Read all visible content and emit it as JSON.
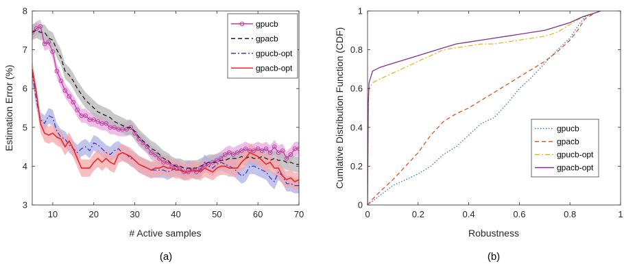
{
  "chart_data": [
    {
      "type": "line",
      "caption": "(a)",
      "xlabel": "# Active samples",
      "ylabel": "Estimation Error (%)",
      "xlim": [
        5,
        70
      ],
      "ylim": [
        3,
        8
      ],
      "xticks": [
        10,
        20,
        30,
        40,
        50,
        60,
        70
      ],
      "yticks": [
        3,
        4,
        5,
        6,
        7,
        8
      ],
      "grid": false,
      "legend_position": "top-right",
      "series": [
        {
          "name": "gpucb",
          "color": "#c23ea6",
          "band_color": "#e7a8dd",
          "line_style": "solid",
          "marker": "circle",
          "x": [
            5,
            6,
            7,
            8,
            9,
            10,
            11,
            12,
            13,
            14,
            15,
            16,
            17,
            18,
            19,
            20,
            21,
            22,
            23,
            24,
            25,
            26,
            27,
            28,
            29,
            30,
            31,
            32,
            33,
            34,
            35,
            36,
            37,
            38,
            39,
            40,
            41,
            42,
            43,
            44,
            45,
            46,
            47,
            48,
            49,
            50,
            51,
            52,
            53,
            54,
            55,
            56,
            57,
            58,
            59,
            60,
            61,
            62,
            63,
            64,
            65,
            66,
            67,
            68,
            69,
            70
          ],
          "y": [
            7.45,
            7.55,
            7.6,
            7.15,
            7.2,
            6.95,
            6.45,
            6.2,
            5.95,
            5.8,
            5.65,
            5.45,
            5.3,
            5.3,
            5.2,
            5.2,
            5.15,
            5.1,
            5.1,
            5.0,
            5.0,
            4.95,
            4.95,
            4.95,
            5.0,
            4.85,
            4.7,
            4.6,
            4.5,
            4.35,
            4.3,
            4.2,
            4.1,
            4.1,
            4.0,
            4.0,
            3.95,
            3.85,
            3.85,
            3.9,
            3.85,
            3.95,
            4.0,
            4.05,
            4.1,
            4.15,
            4.2,
            4.3,
            4.35,
            4.3,
            4.35,
            4.4,
            4.45,
            4.4,
            4.4,
            4.45,
            4.4,
            4.45,
            4.35,
            4.5,
            4.35,
            4.4,
            4.2,
            4.3,
            4.45,
            4.45
          ],
          "band": 0.18
        },
        {
          "name": "gpacb",
          "color": "#1a1a1a",
          "band_color": "#b5b5b5",
          "line_style": "dashed",
          "marker": "none",
          "x": [
            5,
            6,
            7,
            8,
            9,
            10,
            11,
            12,
            13,
            14,
            15,
            16,
            17,
            18,
            19,
            20,
            21,
            22,
            23,
            24,
            25,
            26,
            27,
            28,
            29,
            30,
            31,
            32,
            33,
            34,
            35,
            36,
            37,
            38,
            39,
            40,
            41,
            42,
            43,
            44,
            45,
            46,
            47,
            48,
            49,
            50,
            51,
            52,
            53,
            54,
            55,
            56,
            57,
            58,
            59,
            60,
            61,
            62,
            63,
            64,
            65,
            66,
            67,
            68,
            69,
            70
          ],
          "y": [
            7.45,
            7.5,
            7.45,
            7.45,
            7.3,
            7.25,
            7.0,
            6.8,
            6.45,
            6.35,
            6.2,
            6.0,
            5.85,
            5.7,
            5.6,
            5.5,
            5.4,
            5.35,
            5.3,
            5.25,
            5.15,
            5.1,
            5.05,
            5.0,
            5.0,
            4.9,
            4.75,
            4.65,
            4.55,
            4.45,
            4.4,
            4.3,
            4.2,
            4.15,
            4.05,
            4.0,
            4.0,
            3.95,
            3.95,
            3.95,
            3.95,
            4.0,
            4.05,
            4.1,
            4.1,
            4.1,
            4.15,
            4.15,
            4.2,
            4.2,
            4.2,
            4.25,
            4.2,
            4.25,
            4.2,
            4.2,
            4.25,
            4.2,
            4.15,
            4.2,
            4.15,
            4.15,
            4.1,
            4.1,
            4.05,
            4.05
          ],
          "band": 0.2
        },
        {
          "name": "gpucb-opt",
          "color": "#3b3ec6",
          "band_color": "#aeb0e6",
          "line_style": "dashdot",
          "marker": "none",
          "x": [
            5,
            6,
            7,
            8,
            9,
            10,
            11,
            12,
            13,
            14,
            15,
            16,
            17,
            18,
            19,
            20,
            21,
            22,
            23,
            24,
            25,
            26,
            27,
            28,
            29,
            30,
            31,
            32,
            33,
            34,
            35,
            36,
            37,
            38,
            39,
            40,
            41,
            42,
            43,
            44,
            45,
            46,
            47,
            48,
            49,
            50,
            51,
            52,
            53,
            54,
            55,
            56,
            57,
            58,
            59,
            60,
            61,
            62,
            63,
            64,
            65,
            66,
            67,
            68,
            69,
            70
          ],
          "y": [
            6.4,
            5.7,
            5.2,
            5.1,
            5.3,
            5.25,
            4.9,
            4.75,
            4.7,
            4.55,
            4.45,
            4.35,
            4.45,
            4.5,
            4.4,
            4.6,
            4.55,
            4.45,
            4.35,
            4.3,
            4.4,
            4.45,
            4.35,
            4.3,
            4.2,
            4.15,
            4.05,
            4.0,
            3.95,
            3.9,
            3.9,
            3.9,
            3.9,
            3.85,
            3.9,
            3.95,
            3.9,
            3.85,
            3.95,
            3.9,
            3.85,
            3.9,
            4.1,
            4.0,
            3.95,
            4.05,
            4.1,
            4.05,
            4.0,
            3.95,
            3.85,
            3.75,
            3.8,
            4.0,
            4.0,
            3.95,
            3.9,
            3.85,
            3.7,
            3.6,
            3.85,
            3.75,
            3.55,
            3.55,
            3.5,
            3.5
          ],
          "band": 0.2
        },
        {
          "name": "gpacb-opt",
          "color": "#e8252a",
          "band_color": "#f4a7a9",
          "line_style": "solid",
          "marker": "none",
          "x": [
            5,
            6,
            7,
            8,
            9,
            10,
            11,
            12,
            13,
            14,
            15,
            16,
            17,
            18,
            19,
            20,
            21,
            22,
            23,
            24,
            25,
            26,
            27,
            28,
            29,
            30,
            31,
            32,
            33,
            34,
            35,
            36,
            37,
            38,
            39,
            40,
            41,
            42,
            43,
            44,
            45,
            46,
            47,
            48,
            49,
            50,
            51,
            52,
            53,
            54,
            55,
            56,
            57,
            58,
            59,
            60,
            61,
            62,
            63,
            64,
            65,
            66,
            67,
            68,
            69,
            70
          ],
          "y": [
            6.5,
            5.9,
            5.1,
            4.85,
            4.8,
            4.85,
            4.75,
            4.7,
            4.5,
            4.65,
            4.45,
            4.2,
            3.95,
            3.95,
            3.95,
            4.1,
            4.2,
            4.1,
            4.2,
            4.1,
            4.05,
            4.3,
            4.35,
            4.3,
            4.25,
            4.15,
            4.05,
            4.0,
            3.95,
            3.9,
            3.95,
            3.95,
            4.0,
            3.95,
            3.95,
            3.9,
            3.9,
            3.85,
            3.85,
            3.9,
            3.9,
            3.85,
            3.95,
            3.9,
            3.85,
            3.95,
            4.0,
            4.0,
            3.95,
            3.95,
            3.95,
            4.1,
            4.2,
            4.35,
            4.3,
            4.25,
            4.15,
            4.05,
            4.1,
            3.95,
            3.95,
            3.75,
            3.65,
            3.7,
            3.6,
            3.65
          ],
          "band": 0.22
        }
      ]
    },
    {
      "type": "line",
      "caption": "(b)",
      "xlabel": "Robustness",
      "ylabel": "Cumlative Distribution Function (CDF)",
      "xlim": [
        0,
        1
      ],
      "ylim": [
        0,
        1
      ],
      "xticks": [
        0,
        0.2,
        0.4,
        0.6,
        0.8,
        1
      ],
      "yticks": [
        0,
        0.2,
        0.4,
        0.6,
        0.8,
        1
      ],
      "grid": false,
      "legend_position": "center-right",
      "series": [
        {
          "name": "gpucb",
          "color": "#2a78c2",
          "line_style": "dotted",
          "x": [
            0,
            0.02,
            0.05,
            0.1,
            0.15,
            0.2,
            0.25,
            0.3,
            0.35,
            0.4,
            0.45,
            0.5,
            0.55,
            0.6,
            0.65,
            0.7,
            0.75,
            0.8,
            0.83,
            0.86,
            0.9,
            0.92
          ],
          "y": [
            0,
            0.02,
            0.05,
            0.1,
            0.13,
            0.16,
            0.2,
            0.26,
            0.3,
            0.36,
            0.42,
            0.45,
            0.52,
            0.6,
            0.66,
            0.73,
            0.8,
            0.86,
            0.92,
            0.97,
            0.99,
            1.0
          ]
        },
        {
          "name": "gpacb",
          "color": "#d9531e",
          "line_style": "dashed",
          "x": [
            0,
            0.02,
            0.05,
            0.1,
            0.15,
            0.2,
            0.25,
            0.3,
            0.35,
            0.4,
            0.45,
            0.5,
            0.55,
            0.6,
            0.65,
            0.7,
            0.75,
            0.8,
            0.83,
            0.86,
            0.9,
            0.92
          ],
          "y": [
            0,
            0.03,
            0.07,
            0.13,
            0.2,
            0.27,
            0.36,
            0.43,
            0.47,
            0.5,
            0.54,
            0.58,
            0.62,
            0.66,
            0.7,
            0.74,
            0.79,
            0.85,
            0.9,
            0.96,
            0.99,
            1.0
          ]
        },
        {
          "name": "gpucb-opt",
          "color": "#edb120",
          "line_style": "dashdot",
          "x": [
            0,
            0.003,
            0.006,
            0.02,
            0.05,
            0.1,
            0.15,
            0.2,
            0.25,
            0.3,
            0.35,
            0.4,
            0.45,
            0.5,
            0.55,
            0.6,
            0.65,
            0.7,
            0.75,
            0.8,
            0.85,
            0.9,
            0.92
          ],
          "y": [
            0,
            0.5,
            0.6,
            0.63,
            0.65,
            0.68,
            0.71,
            0.74,
            0.77,
            0.8,
            0.81,
            0.82,
            0.83,
            0.83,
            0.84,
            0.85,
            0.86,
            0.87,
            0.89,
            0.93,
            0.97,
            0.99,
            1.0
          ]
        },
        {
          "name": "gpacb-opt",
          "color": "#7e2f8e",
          "line_style": "solid",
          "x": [
            0,
            0.003,
            0.006,
            0.02,
            0.05,
            0.1,
            0.15,
            0.2,
            0.25,
            0.3,
            0.35,
            0.4,
            0.45,
            0.5,
            0.55,
            0.6,
            0.65,
            0.7,
            0.75,
            0.8,
            0.85,
            0.9,
            0.92
          ],
          "y": [
            0,
            0.53,
            0.63,
            0.69,
            0.71,
            0.73,
            0.75,
            0.77,
            0.79,
            0.81,
            0.83,
            0.84,
            0.85,
            0.86,
            0.87,
            0.88,
            0.89,
            0.9,
            0.92,
            0.94,
            0.97,
            0.99,
            1.0
          ]
        }
      ]
    }
  ]
}
